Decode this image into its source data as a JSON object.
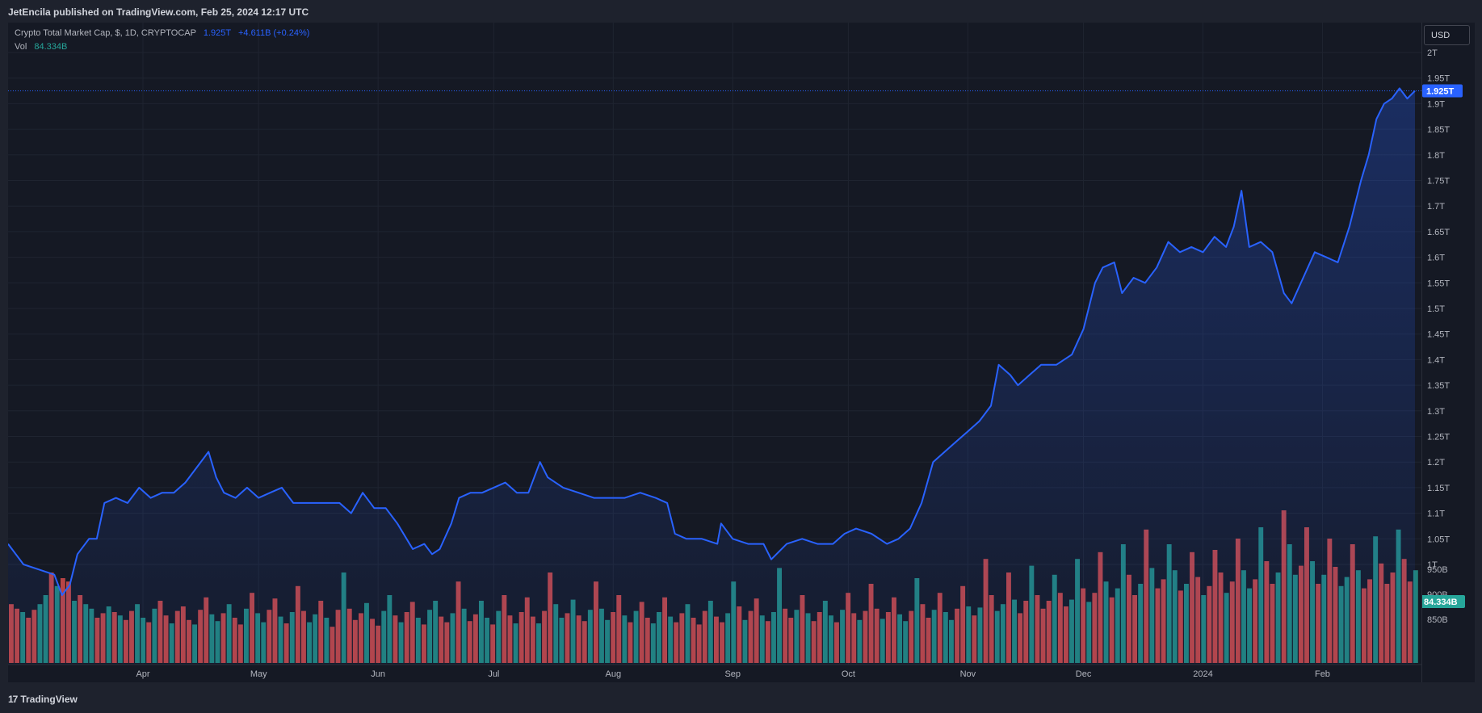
{
  "header": {
    "published_by": "JetEncila published on TradingView.com, Feb 25, 2024 12:17 UTC"
  },
  "legend": {
    "title": "Crypto Total Market Cap, $, 1D, CRYPTOCAP",
    "last_value": "1.925T",
    "change": "+4.611B (+0.24%)",
    "vol_label": "Vol",
    "vol_value": "84.334B"
  },
  "axis": {
    "currency_button": "USD",
    "price_badge": "1.925T",
    "volume_badge": "84.334B",
    "volume_ticks": [
      "950B",
      "900B",
      "850B"
    ]
  },
  "footer": {
    "logo_mark": "17",
    "logo_text": "TradingView"
  },
  "colors": {
    "line": "#2962ff",
    "vol_up": "#26a69a",
    "vol_down": "#ef5350",
    "background": "#151924"
  },
  "chart_data": {
    "type": "line",
    "title": "Crypto Total Market Cap, $, 1D, CRYPTOCAP",
    "x_ticks": [
      "Apr",
      "May",
      "Jun",
      "Jul",
      "Aug",
      "Sep",
      "Oct",
      "Nov",
      "Dec",
      "2024",
      "Feb"
    ],
    "y_ticks": [
      "2T",
      "1.95T",
      "1.9T",
      "1.85T",
      "1.8T",
      "1.75T",
      "1.7T",
      "1.65T",
      "1.6T",
      "1.55T",
      "1.5T",
      "1.45T",
      "1.4T",
      "1.35T",
      "1.3T",
      "1.25T",
      "1.2T",
      "1.15T",
      "1.1T",
      "1.05T",
      "1T"
    ],
    "ylim": [
      0.955,
      2.03
    ],
    "unit": "T",
    "x_range": [
      "2023-02-25",
      "2024-02-25"
    ],
    "series": [
      {
        "points": [
          [
            "2023-02-25",
            1.04
          ],
          [
            "2023-03-01",
            1.0
          ],
          [
            "2023-03-05",
            0.99
          ],
          [
            "2023-03-09",
            0.98
          ],
          [
            "2023-03-11",
            0.94
          ],
          [
            "2023-03-13",
            0.96
          ],
          [
            "2023-03-15",
            1.02
          ],
          [
            "2023-03-18",
            1.05
          ],
          [
            "2023-03-20",
            1.05
          ],
          [
            "2023-03-22",
            1.12
          ],
          [
            "2023-03-25",
            1.13
          ],
          [
            "2023-03-28",
            1.12
          ],
          [
            "2023-03-31",
            1.15
          ],
          [
            "2023-04-03",
            1.13
          ],
          [
            "2023-04-06",
            1.14
          ],
          [
            "2023-04-09",
            1.14
          ],
          [
            "2023-04-12",
            1.16
          ],
          [
            "2023-04-15",
            1.19
          ],
          [
            "2023-04-18",
            1.22
          ],
          [
            "2023-04-20",
            1.17
          ],
          [
            "2023-04-22",
            1.14
          ],
          [
            "2023-04-25",
            1.13
          ],
          [
            "2023-04-28",
            1.15
          ],
          [
            "2023-05-01",
            1.13
          ],
          [
            "2023-05-04",
            1.14
          ],
          [
            "2023-05-07",
            1.15
          ],
          [
            "2023-05-10",
            1.12
          ],
          [
            "2023-05-13",
            1.12
          ],
          [
            "2023-05-16",
            1.12
          ],
          [
            "2023-05-19",
            1.12
          ],
          [
            "2023-05-22",
            1.12
          ],
          [
            "2023-05-25",
            1.1
          ],
          [
            "2023-05-28",
            1.14
          ],
          [
            "2023-05-31",
            1.11
          ],
          [
            "2023-06-03",
            1.11
          ],
          [
            "2023-06-06",
            1.08
          ],
          [
            "2023-06-10",
            1.03
          ],
          [
            "2023-06-13",
            1.04
          ],
          [
            "2023-06-15",
            1.02
          ],
          [
            "2023-06-17",
            1.03
          ],
          [
            "2023-06-20",
            1.08
          ],
          [
            "2023-06-22",
            1.13
          ],
          [
            "2023-06-25",
            1.14
          ],
          [
            "2023-06-28",
            1.14
          ],
          [
            "2023-07-01",
            1.15
          ],
          [
            "2023-07-04",
            1.16
          ],
          [
            "2023-07-07",
            1.14
          ],
          [
            "2023-07-10",
            1.14
          ],
          [
            "2023-07-13",
            1.2
          ],
          [
            "2023-07-15",
            1.17
          ],
          [
            "2023-07-19",
            1.15
          ],
          [
            "2023-07-23",
            1.14
          ],
          [
            "2023-07-27",
            1.13
          ],
          [
            "2023-07-31",
            1.13
          ],
          [
            "2023-08-04",
            1.13
          ],
          [
            "2023-08-08",
            1.14
          ],
          [
            "2023-08-12",
            1.13
          ],
          [
            "2023-08-15",
            1.12
          ],
          [
            "2023-08-17",
            1.06
          ],
          [
            "2023-08-20",
            1.05
          ],
          [
            "2023-08-24",
            1.05
          ],
          [
            "2023-08-28",
            1.04
          ],
          [
            "2023-08-29",
            1.08
          ],
          [
            "2023-09-01",
            1.05
          ],
          [
            "2023-09-05",
            1.04
          ],
          [
            "2023-09-09",
            1.04
          ],
          [
            "2023-09-11",
            1.01
          ],
          [
            "2023-09-15",
            1.04
          ],
          [
            "2023-09-19",
            1.05
          ],
          [
            "2023-09-23",
            1.04
          ],
          [
            "2023-09-27",
            1.04
          ],
          [
            "2023-09-30",
            1.06
          ],
          [
            "2023-10-03",
            1.07
          ],
          [
            "2023-10-07",
            1.06
          ],
          [
            "2023-10-11",
            1.04
          ],
          [
            "2023-10-14",
            1.05
          ],
          [
            "2023-10-17",
            1.07
          ],
          [
            "2023-10-20",
            1.12
          ],
          [
            "2023-10-23",
            1.2
          ],
          [
            "2023-10-26",
            1.22
          ],
          [
            "2023-10-29",
            1.24
          ],
          [
            "2023-11-01",
            1.26
          ],
          [
            "2023-11-04",
            1.28
          ],
          [
            "2023-11-07",
            1.31
          ],
          [
            "2023-11-09",
            1.39
          ],
          [
            "2023-11-12",
            1.37
          ],
          [
            "2023-11-14",
            1.35
          ],
          [
            "2023-11-17",
            1.37
          ],
          [
            "2023-11-20",
            1.39
          ],
          [
            "2023-11-24",
            1.39
          ],
          [
            "2023-11-28",
            1.41
          ],
          [
            "2023-12-01",
            1.46
          ],
          [
            "2023-12-04",
            1.55
          ],
          [
            "2023-12-06",
            1.58
          ],
          [
            "2023-12-09",
            1.59
          ],
          [
            "2023-12-11",
            1.53
          ],
          [
            "2023-12-14",
            1.56
          ],
          [
            "2023-12-17",
            1.55
          ],
          [
            "2023-12-20",
            1.58
          ],
          [
            "2023-12-23",
            1.63
          ],
          [
            "2023-12-26",
            1.61
          ],
          [
            "2023-12-29",
            1.62
          ],
          [
            "2024-01-01",
            1.61
          ],
          [
            "2024-01-04",
            1.64
          ],
          [
            "2024-01-07",
            1.62
          ],
          [
            "2024-01-09",
            1.66
          ],
          [
            "2024-01-11",
            1.73
          ],
          [
            "2024-01-13",
            1.62
          ],
          [
            "2024-01-16",
            1.63
          ],
          [
            "2024-01-19",
            1.61
          ],
          [
            "2024-01-22",
            1.53
          ],
          [
            "2024-01-24",
            1.51
          ],
          [
            "2024-01-27",
            1.56
          ],
          [
            "2024-01-30",
            1.61
          ],
          [
            "2024-02-02",
            1.6
          ],
          [
            "2024-02-05",
            1.59
          ],
          [
            "2024-02-08",
            1.66
          ],
          [
            "2024-02-11",
            1.75
          ],
          [
            "2024-02-13",
            1.8
          ],
          [
            "2024-02-15",
            1.87
          ],
          [
            "2024-02-17",
            1.9
          ],
          [
            "2024-02-19",
            1.91
          ],
          [
            "2024-02-21",
            1.93
          ],
          [
            "2024-02-23",
            1.91
          ],
          [
            "2024-02-25",
            1.925
          ]
        ]
      }
    ],
    "volume": {
      "name": "Vol",
      "relative_heights": [
        0.52,
        0.48,
        0.45,
        0.4,
        0.47,
        0.52,
        0.6,
        0.8,
        0.68,
        0.75,
        0.72,
        0.55,
        0.6,
        0.52,
        0.48,
        0.4,
        0.44,
        0.5,
        0.45,
        0.42,
        0.38,
        0.46,
        0.52,
        0.4,
        0.36,
        0.48,
        0.55,
        0.42,
        0.35,
        0.46,
        0.5,
        0.38,
        0.34,
        0.47,
        0.58,
        0.43,
        0.37,
        0.44,
        0.52,
        0.4,
        0.34,
        0.48,
        0.62,
        0.44,
        0.36,
        0.47,
        0.57,
        0.41,
        0.35,
        0.45,
        0.68,
        0.46,
        0.36,
        0.43,
        0.55,
        0.4,
        0.32,
        0.47,
        0.8,
        0.48,
        0.38,
        0.44,
        0.53,
        0.39,
        0.33,
        0.46,
        0.6,
        0.42,
        0.36,
        0.45,
        0.54,
        0.4,
        0.34,
        0.47,
        0.55,
        0.41,
        0.36,
        0.44,
        0.72,
        0.48,
        0.37,
        0.43,
        0.55,
        0.4,
        0.34,
        0.46,
        0.6,
        0.42,
        0.35,
        0.45,
        0.58,
        0.41,
        0.35,
        0.46,
        0.8,
        0.52,
        0.4,
        0.44,
        0.56,
        0.42,
        0.37,
        0.47,
        0.72,
        0.48,
        0.38,
        0.45,
        0.6,
        0.42,
        0.36,
        0.46,
        0.54,
        0.4,
        0.35,
        0.45,
        0.58,
        0.41,
        0.36,
        0.44,
        0.52,
        0.4,
        0.34,
        0.46,
        0.55,
        0.41,
        0.36,
        0.44,
        0.72,
        0.5,
        0.38,
        0.46,
        0.57,
        0.42,
        0.37,
        0.45,
        0.84,
        0.48,
        0.4,
        0.47,
        0.6,
        0.44,
        0.37,
        0.45,
        0.55,
        0.42,
        0.36,
        0.47,
        0.62,
        0.44,
        0.38,
        0.46,
        0.7,
        0.48,
        0.39,
        0.45,
        0.58,
        0.43,
        0.37,
        0.46,
        0.75,
        0.52,
        0.4,
        0.47,
        0.62,
        0.45,
        0.38,
        0.48,
        0.68,
        0.5,
        0.42,
        0.49,
        0.92,
        0.6,
        0.46,
        0.52,
        0.8,
        0.56,
        0.44,
        0.55,
        0.86,
        0.6,
        0.48,
        0.55,
        0.78,
        0.62,
        0.5,
        0.56,
        0.92,
        0.66,
        0.54,
        0.62,
        0.98,
        0.72,
        0.58,
        0.66,
        1.05,
        0.78,
        0.6,
        0.7,
        1.18,
        0.84,
        0.66,
        0.74,
        1.05,
        0.82,
        0.64,
        0.7,
        0.98,
        0.76,
        0.6,
        0.68,
        1.0,
        0.8,
        0.62,
        0.72,
        1.1,
        0.82,
        0.66,
        0.74,
        1.2,
        0.9,
        0.7,
        0.8,
        1.35,
        1.05,
        0.78,
        0.86,
        1.2,
        0.9,
        0.7,
        0.78,
        1.1,
        0.85,
        0.68,
        0.76,
        1.05,
        0.82,
        0.66,
        0.74,
        1.12,
        0.88,
        0.7,
        0.8,
        1.18,
        0.92,
        0.72,
        0.82
      ],
      "up_pattern": [
        0,
        0,
        1,
        0,
        0,
        1,
        1,
        0,
        1,
        0,
        0,
        1,
        0,
        1,
        1,
        0,
        0,
        1,
        0,
        1,
        0,
        0,
        1,
        1,
        0,
        1,
        0,
        0,
        1,
        0
      ]
    },
    "last_value": 1.925
  }
}
